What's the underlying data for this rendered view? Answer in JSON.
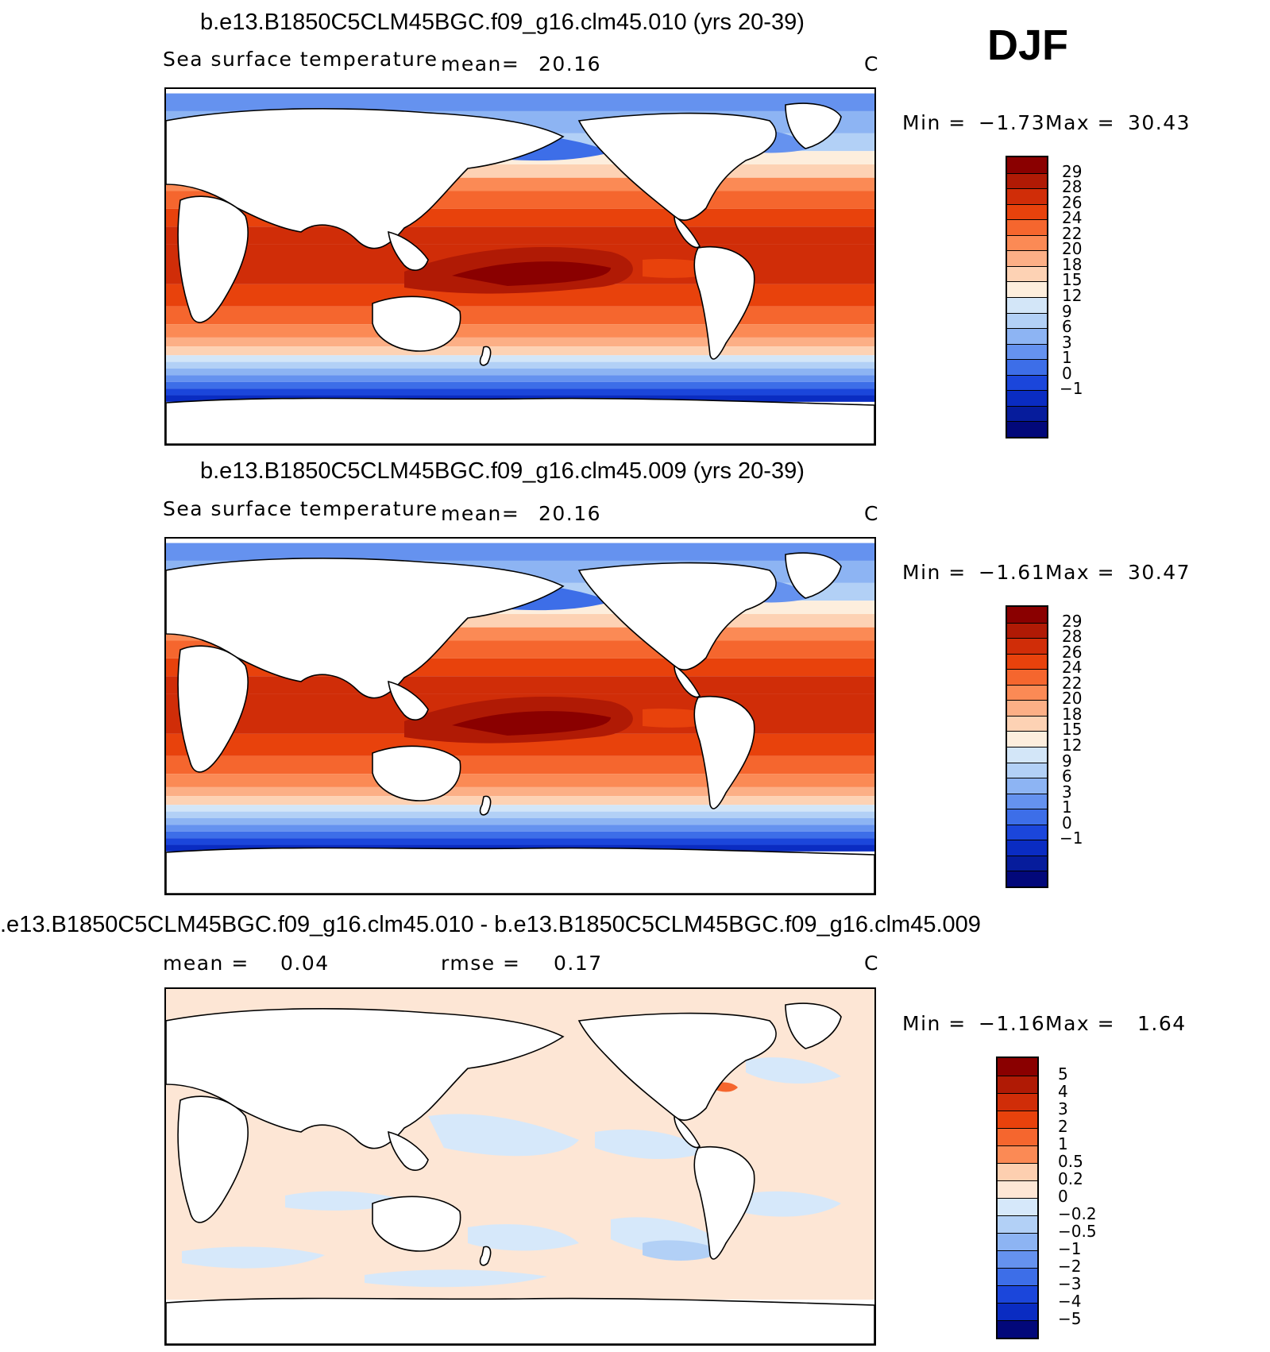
{
  "season": "DJF",
  "panels": [
    {
      "title": "b.e13.B1850C5CLM45BGC.f09_g16.clm45.010 (yrs 20-39)",
      "variable": "Sea surface temperature",
      "mean_label": "mean=",
      "mean_value": "20.16",
      "units": "C",
      "min_label": "Min =",
      "min_value": "−1.73",
      "max_label": "Max =",
      "max_value": "30.43"
    },
    {
      "title": "b.e13.B1850C5CLM45BGC.f09_g16.clm45.009 (yrs 20-39)",
      "variable": "Sea surface temperature",
      "mean_label": "mean=",
      "mean_value": "20.16",
      "units": "C",
      "min_label": "Min =",
      "min_value": "−1.61",
      "max_label": "Max =",
      "max_value": "30.47"
    },
    {
      "title": ".e13.B1850C5CLM45BGC.f09_g16.clm45.010 - b.e13.B1850C5CLM45BGC.f09_g16.clm45.009",
      "mean_label": "mean =",
      "mean_value": "0.04",
      "rmse_label": "rmse =",
      "rmse_value": "0.17",
      "units": "C",
      "min_label": "Min =",
      "min_value": "−1.16",
      "max_label": "Max =",
      "max_value": "1.64"
    }
  ],
  "colorbars": {
    "sst": {
      "labels": [
        "29",
        "28",
        "26",
        "24",
        "22",
        "20",
        "18",
        "15",
        "12",
        "9",
        "6",
        "3",
        "1",
        "0",
        "−1"
      ],
      "colors": [
        "#8a0000",
        "#b01a05",
        "#d02d08",
        "#e8420c",
        "#f5662e",
        "#fb8a55",
        "#fcaf86",
        "#fdd2b4",
        "#fdeedd",
        "#d3e6f8",
        "#b2d0f6",
        "#8db4f3",
        "#6592ef",
        "#3d6ee8",
        "#1b46db",
        "#0a2cc2",
        "#061c9c",
        "#02087a"
      ]
    },
    "diff": {
      "labels": [
        "5",
        "4",
        "3",
        "2",
        "1",
        "0.5",
        "0.2",
        "0",
        "−0.2",
        "−0.5",
        "−1",
        "−2",
        "−3",
        "−4",
        "−5"
      ],
      "colors": [
        "#8a0000",
        "#b01a05",
        "#d02d08",
        "#e8420c",
        "#f5662e",
        "#fb8a55",
        "#fdcfb0",
        "#fde6d5",
        "#d6e8fa",
        "#b2d0f6",
        "#8db4f3",
        "#6592ef",
        "#3d6ee8",
        "#1b46db",
        "#0a2cc2",
        "#02087a"
      ]
    }
  },
  "chart_data": [
    {
      "type": "heatmap",
      "title": "b.e13.B1850C5CLM45BGC.f09_g16.clm45.010 (yrs 20-39)",
      "variable": "Sea surface temperature",
      "units": "C",
      "mean": 20.16,
      "min": -1.73,
      "max": 30.43,
      "contour_levels": [
        -1,
        0,
        1,
        3,
        6,
        9,
        12,
        15,
        18,
        20,
        22,
        24,
        26,
        28,
        29
      ],
      "bands": [
        {
          "lat": 70,
          "value": 3
        },
        {
          "lat": 60,
          "value": 6
        },
        {
          "lat": 50,
          "value": 12
        },
        {
          "lat": 40,
          "value": 18
        },
        {
          "lat": 30,
          "value": 22
        },
        {
          "lat": 20,
          "value": 25
        },
        {
          "lat": 10,
          "value": 27
        },
        {
          "lat": 0,
          "value": 28
        },
        {
          "lat": -10,
          "value": 27
        },
        {
          "lat": -20,
          "value": 25
        },
        {
          "lat": -30,
          "value": 21
        },
        {
          "lat": -40,
          "value": 15
        },
        {
          "lat": -50,
          "value": 6
        },
        {
          "lat": -60,
          "value": 0
        },
        {
          "lat": -70,
          "value": -1
        }
      ]
    },
    {
      "type": "heatmap",
      "title": "b.e13.B1850C5CLM45BGC.f09_g16.clm45.009 (yrs 20-39)",
      "variable": "Sea surface temperature",
      "units": "C",
      "mean": 20.16,
      "min": -1.61,
      "max": 30.47,
      "contour_levels": [
        -1,
        0,
        1,
        3,
        6,
        9,
        12,
        15,
        18,
        20,
        22,
        24,
        26,
        28,
        29
      ],
      "bands": [
        {
          "lat": 70,
          "value": 3
        },
        {
          "lat": 60,
          "value": 6
        },
        {
          "lat": 50,
          "value": 12
        },
        {
          "lat": 40,
          "value": 18
        },
        {
          "lat": 30,
          "value": 22
        },
        {
          "lat": 20,
          "value": 25
        },
        {
          "lat": 10,
          "value": 27
        },
        {
          "lat": 0,
          "value": 28
        },
        {
          "lat": -10,
          "value": 27
        },
        {
          "lat": -20,
          "value": 25
        },
        {
          "lat": -30,
          "value": 21
        },
        {
          "lat": -40,
          "value": 15
        },
        {
          "lat": -50,
          "value": 6
        },
        {
          "lat": -60,
          "value": 0
        },
        {
          "lat": -70,
          "value": -1
        }
      ]
    },
    {
      "type": "heatmap",
      "title": ".e13.B1850C5CLM45BGC.f09_g16.clm45.010 - b.e13.B1850C5CLM45BGC.f09_g16.clm45.009",
      "units": "C",
      "mean": 0.04,
      "rmse": 0.17,
      "min": -1.16,
      "max": 1.64,
      "contour_levels": [
        -5,
        -4,
        -3,
        -2,
        -1,
        -0.5,
        -0.2,
        0,
        0.2,
        0.5,
        1,
        2,
        3,
        4,
        5
      ]
    }
  ]
}
